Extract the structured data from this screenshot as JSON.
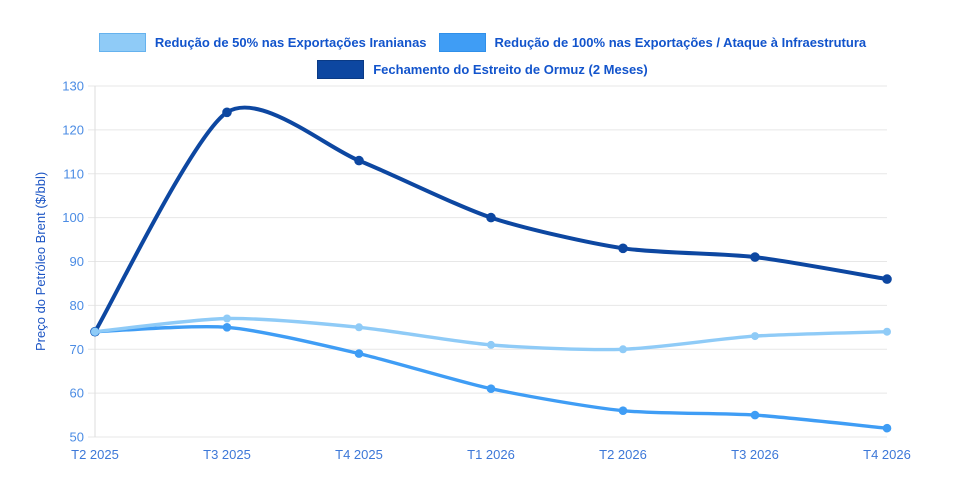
{
  "chart_data": {
    "type": "line",
    "title": "",
    "categories": [
      "T2 2025",
      "T3 2025",
      "T4 2025",
      "T1 2026",
      "T2 2026",
      "T3 2026",
      "T4 2026"
    ],
    "series": [
      {
        "name": "Redução de 50% nas Exportações Iranianas",
        "color": "#8FCBF7",
        "border_color": "#65B2EE",
        "line_width": 3.4,
        "point_radius": 4,
        "values": [
          74,
          77,
          75,
          71,
          70,
          73,
          74
        ]
      },
      {
        "name": "Redução de 100% nas Exportações / Ataque à Infraestrutura",
        "color": "#3F9DF5",
        "border_color": "#2F8FE9",
        "line_width": 3.4,
        "point_radius": 4.3,
        "values": [
          74,
          75,
          69,
          61,
          56,
          55,
          52
        ]
      },
      {
        "name": "Fechamento do Estreito de Ormuz (2 Meses)",
        "color": "#0D47A1",
        "border_color": "#0A3A85",
        "line_width": 4,
        "point_radius": 4.8,
        "values": [
          74,
          124,
          113,
          100,
          93,
          91,
          86
        ]
      }
    ],
    "ylabel": "Preço do Petróleo Brent ($/bbl)",
    "xlabel": "",
    "ylim": [
      50,
      130
    ],
    "ytick_step": 10,
    "yticks": [
      130,
      120,
      110,
      100,
      90,
      80,
      70,
      60,
      50
    ],
    "grid": "horizontal",
    "legend_position": "top",
    "line_tension": 0.25,
    "style": {
      "background": "#FFFFFF",
      "grid_color": "#E7E7E7",
      "axis_line_color": "#DEDEDE",
      "ytick_color": "#4B8CE4",
      "xtick_color": "#3D78D8",
      "axis_title_color": "#1C55C4",
      "legend_text_color": "#1254CC"
    }
  }
}
